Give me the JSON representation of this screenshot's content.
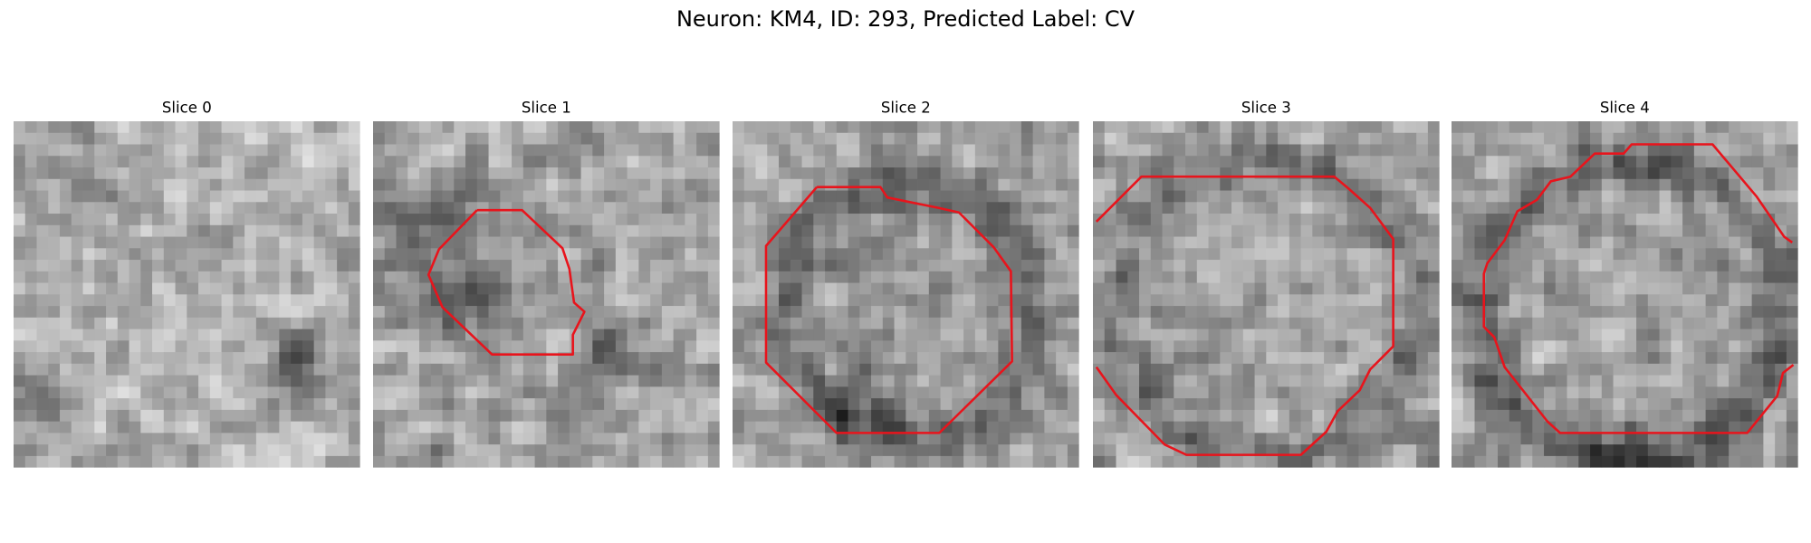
{
  "title": "Neuron: KM4, ID: 293, Predicted Label: CV",
  "panels": [
    {
      "title": "Slice 0"
    },
    {
      "title": "Slice 1"
    },
    {
      "title": "Slice 2"
    },
    {
      "title": "Slice 3"
    },
    {
      "title": "Slice 4"
    }
  ]
}
